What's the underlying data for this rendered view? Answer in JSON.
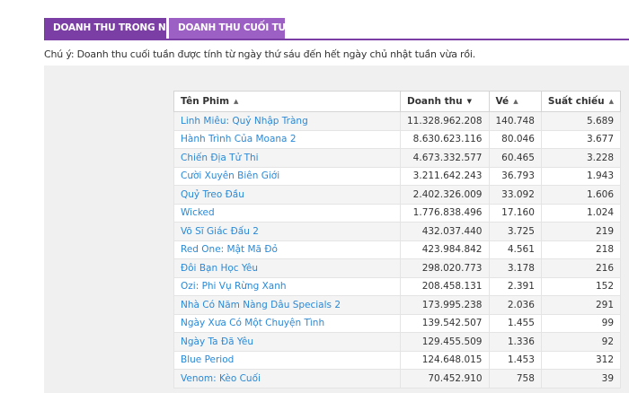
{
  "tabs": [
    {
      "label": "DOANH THU TRONG NGÀY",
      "active": true
    },
    {
      "label": "DOANH THU CUỐI TUẦN",
      "active": false
    }
  ],
  "note": "Chú ý: Doanh thu cuối tuần được tính từ ngày thứ sáu đến hết ngày chủ nhật tuần vừa rồi.",
  "table": {
    "columns": [
      {
        "label": "Tên Phim",
        "sort": "asc"
      },
      {
        "label": "Doanh thu",
        "sort": "desc"
      },
      {
        "label": "Vé",
        "sort": "asc"
      },
      {
        "label": "Suất chiếu",
        "sort": "asc"
      }
    ],
    "rows": [
      {
        "name": "Linh Miêu: Quỷ Nhập Tràng",
        "revenue": "11.328.962.208",
        "tickets": "140.748",
        "shows": "5.689"
      },
      {
        "name": "Hành Trình Của Moana 2",
        "revenue": "8.630.623.116",
        "tickets": "80.046",
        "shows": "3.677"
      },
      {
        "name": "Chiến Địa Tử Thi",
        "revenue": "4.673.332.577",
        "tickets": "60.465",
        "shows": "3.228"
      },
      {
        "name": "Cười Xuyên Biên Giới",
        "revenue": "3.211.642.243",
        "tickets": "36.793",
        "shows": "1.943"
      },
      {
        "name": "Quỷ Treo Đầu",
        "revenue": "2.402.326.009",
        "tickets": "33.092",
        "shows": "1.606"
      },
      {
        "name": "Wicked",
        "revenue": "1.776.838.496",
        "tickets": "17.160",
        "shows": "1.024"
      },
      {
        "name": "Võ Sĩ Giác Đấu 2",
        "revenue": "432.037.440",
        "tickets": "3.725",
        "shows": "219"
      },
      {
        "name": "Red One: Mật Mã Đỏ",
        "revenue": "423.984.842",
        "tickets": "4.561",
        "shows": "218"
      },
      {
        "name": "Đôi Bạn Học Yêu",
        "revenue": "298.020.773",
        "tickets": "3.178",
        "shows": "216"
      },
      {
        "name": "Ozi: Phi Vụ Rừng Xanh",
        "revenue": "208.458.131",
        "tickets": "2.391",
        "shows": "152"
      },
      {
        "name": "Nhà Có Năm Nàng Dâu Specials 2",
        "revenue": "173.995.238",
        "tickets": "2.036",
        "shows": "291"
      },
      {
        "name": "Ngày Xưa Có Một Chuyện Tình",
        "revenue": "139.542.507",
        "tickets": "1.455",
        "shows": "99"
      },
      {
        "name": "Ngày Ta Đã Yêu",
        "revenue": "129.455.509",
        "tickets": "1.336",
        "shows": "92"
      },
      {
        "name": "Blue Period",
        "revenue": "124.648.015",
        "tickets": "1.453",
        "shows": "312"
      },
      {
        "name": "Venom: Kèo Cuối",
        "revenue": "70.452.910",
        "tickets": "758",
        "shows": "39"
      }
    ]
  }
}
